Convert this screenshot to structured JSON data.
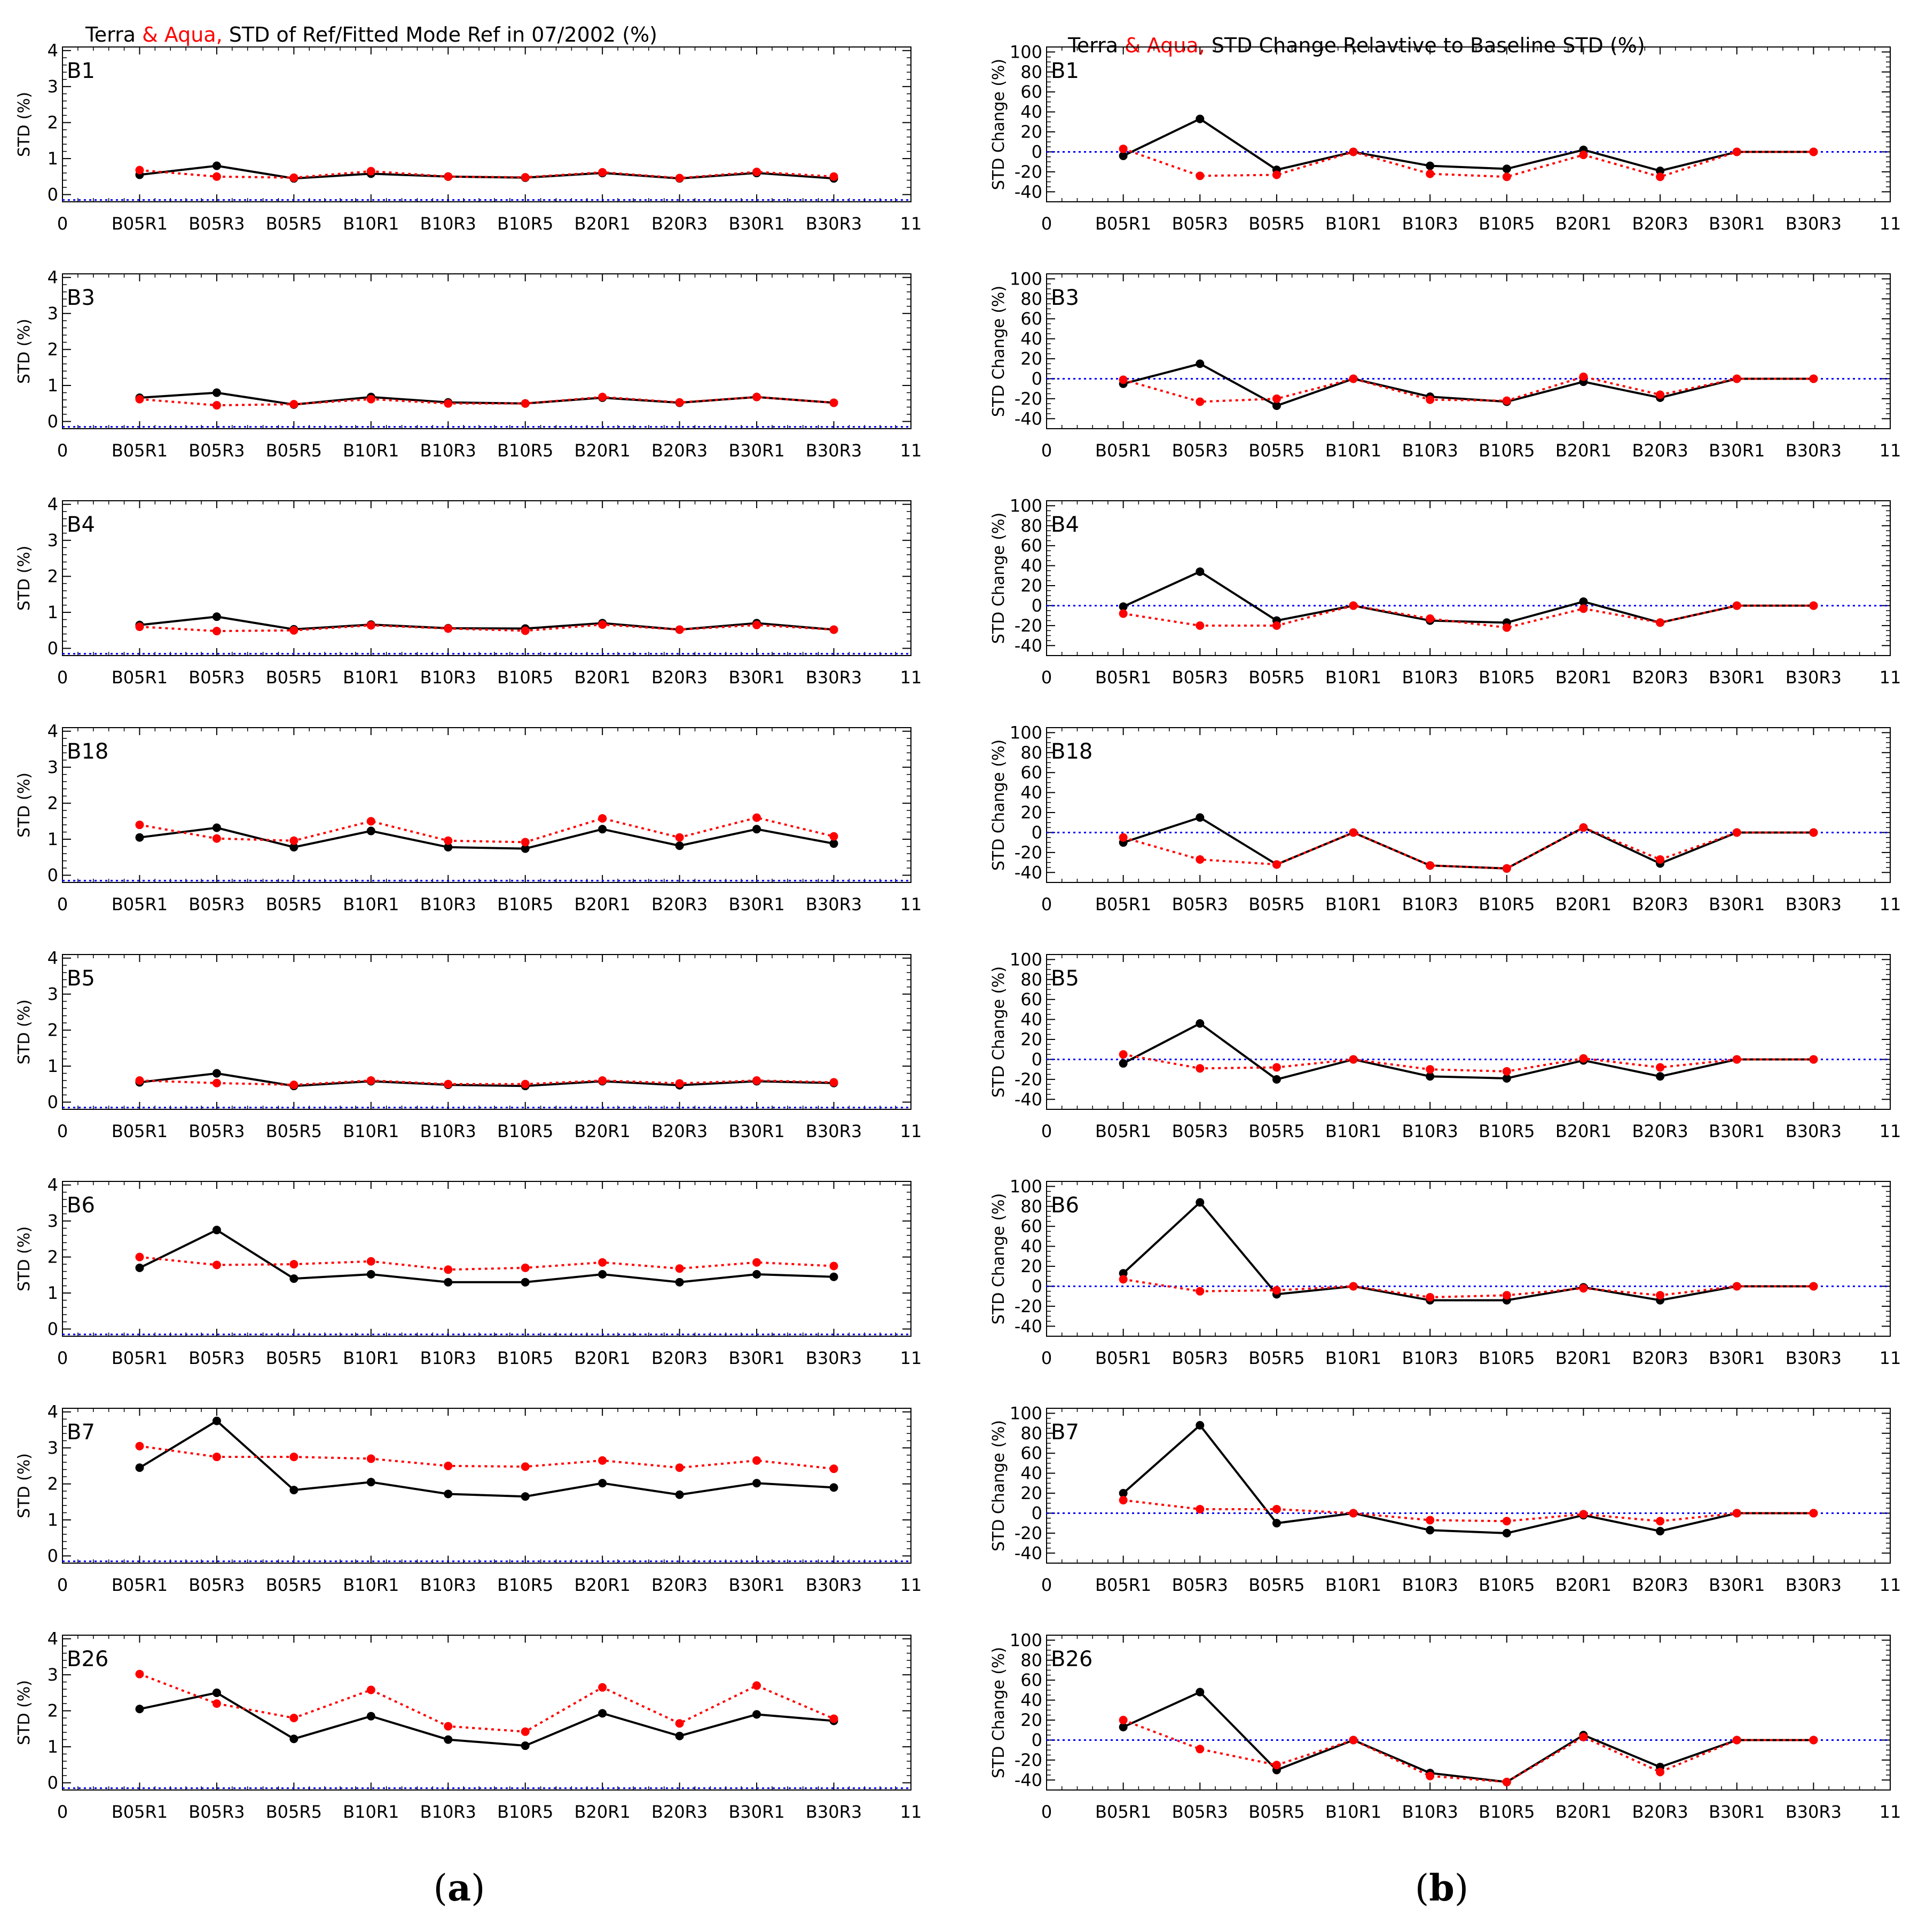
{
  "colors": {
    "terra": "#000000",
    "aqua": "#ff0000",
    "baseline": "#0000ff",
    "axis": "#000000"
  },
  "chart_data": [
    {
      "panel": "a",
      "panel_label": "(a)",
      "type": "line",
      "title": {
        "prefix": "Terra",
        "amp": "&",
        "aqua": "Aqua,",
        "rest": "STD of Ref/Fitted Mode Ref in 07/2002 (%)"
      },
      "ylabel": "STD (%)",
      "xlim": [
        0,
        11
      ],
      "ylim": [
        -0.2,
        4.1
      ],
      "yticks": [
        0,
        1,
        2,
        3,
        4
      ],
      "xtick_edge_labels": [
        "0",
        "11"
      ],
      "categories": [
        "B05R1",
        "B05R3",
        "B05R5",
        "B10R1",
        "B10R3",
        "B10R5",
        "B20R1",
        "B20R3",
        "B30R1",
        "B30R3"
      ],
      "baseline_y": -0.15,
      "subplots": [
        {
          "band": "B1",
          "series": [
            {
              "name": "Terra",
              "values": [
                0.55,
                0.8,
                0.45,
                0.58,
                0.5,
                0.47,
                0.6,
                0.45,
                0.6,
                0.45
              ]
            },
            {
              "name": "Aqua",
              "values": [
                0.68,
                0.5,
                0.47,
                0.65,
                0.5,
                0.48,
                0.62,
                0.46,
                0.63,
                0.5
              ]
            }
          ]
        },
        {
          "band": "B3",
          "series": [
            {
              "name": "Terra",
              "values": [
                0.66,
                0.8,
                0.47,
                0.68,
                0.53,
                0.5,
                0.66,
                0.52,
                0.68,
                0.52
              ]
            },
            {
              "name": "Aqua",
              "values": [
                0.62,
                0.45,
                0.48,
                0.62,
                0.5,
                0.5,
                0.68,
                0.53,
                0.68,
                0.52
              ]
            }
          ]
        },
        {
          "band": "B4",
          "series": [
            {
              "name": "Terra",
              "values": [
                0.65,
                0.88,
                0.53,
                0.66,
                0.56,
                0.55,
                0.7,
                0.52,
                0.7,
                0.52
              ]
            },
            {
              "name": "Aqua",
              "values": [
                0.6,
                0.48,
                0.5,
                0.64,
                0.55,
                0.49,
                0.66,
                0.52,
                0.65,
                0.52
              ]
            }
          ]
        },
        {
          "band": "B18",
          "series": [
            {
              "name": "Terra",
              "values": [
                1.05,
                1.32,
                0.78,
                1.23,
                0.78,
                0.74,
                1.28,
                0.82,
                1.28,
                0.88
              ]
            },
            {
              "name": "Aqua",
              "values": [
                1.4,
                1.02,
                0.96,
                1.5,
                0.96,
                0.92,
                1.58,
                1.05,
                1.6,
                1.08
              ]
            }
          ]
        },
        {
          "band": "B5",
          "series": [
            {
              "name": "Terra",
              "values": [
                0.55,
                0.8,
                0.45,
                0.58,
                0.48,
                0.45,
                0.58,
                0.47,
                0.58,
                0.53
              ]
            },
            {
              "name": "Aqua",
              "values": [
                0.6,
                0.53,
                0.48,
                0.6,
                0.5,
                0.5,
                0.6,
                0.52,
                0.6,
                0.55
              ]
            }
          ]
        },
        {
          "band": "B6",
          "series": [
            {
              "name": "Terra",
              "values": [
                1.7,
                2.75,
                1.4,
                1.52,
                1.3,
                1.3,
                1.52,
                1.3,
                1.52,
                1.45
              ]
            },
            {
              "name": "Aqua",
              "values": [
                2.0,
                1.78,
                1.8,
                1.88,
                1.65,
                1.7,
                1.85,
                1.68,
                1.85,
                1.75
              ]
            }
          ]
        },
        {
          "band": "B7",
          "series": [
            {
              "name": "Terra",
              "values": [
                2.45,
                3.75,
                1.83,
                2.05,
                1.72,
                1.65,
                2.02,
                1.7,
                2.02,
                1.9
              ]
            },
            {
              "name": "Aqua",
              "values": [
                3.05,
                2.75,
                2.75,
                2.7,
                2.5,
                2.48,
                2.65,
                2.45,
                2.65,
                2.42
              ]
            }
          ]
        },
        {
          "band": "B26",
          "series": [
            {
              "name": "Terra",
              "values": [
                2.05,
                2.5,
                1.22,
                1.85,
                1.2,
                1.03,
                1.93,
                1.3,
                1.9,
                1.72
              ]
            },
            {
              "name": "Aqua",
              "values": [
                3.02,
                2.2,
                1.8,
                2.58,
                1.57,
                1.42,
                2.65,
                1.65,
                2.7,
                1.78
              ]
            }
          ]
        }
      ]
    },
    {
      "panel": "b",
      "panel_label": "(b)",
      "type": "line",
      "title": {
        "prefix": "Terra",
        "amp": "&",
        "aqua": "Aqua,",
        "rest": "STD Change Relavtive to Baseline STD (%)"
      },
      "ylabel": "STD Change (%)",
      "xlim": [
        0,
        11
      ],
      "ylim": [
        -50,
        105
      ],
      "yticks": [
        -40,
        -20,
        0,
        20,
        40,
        60,
        80,
        100
      ],
      "xtick_edge_labels": [
        "0",
        "11"
      ],
      "categories": [
        "B05R1",
        "B05R3",
        "B05R5",
        "B10R1",
        "B10R3",
        "B10R5",
        "B20R1",
        "B20R3",
        "B30R1",
        "B30R3"
      ],
      "baseline_y": 0,
      "subplots": [
        {
          "band": "B1",
          "series": [
            {
              "name": "Terra",
              "values": [
                -4,
                33,
                -18,
                0,
                -14,
                -17,
                2,
                -19,
                0,
                0
              ]
            },
            {
              "name": "Aqua",
              "values": [
                3,
                -24,
                -23,
                0,
                -22,
                -25,
                -3,
                -25,
                0,
                0
              ]
            }
          ]
        },
        {
          "band": "B3",
          "series": [
            {
              "name": "Terra",
              "values": [
                -5,
                15,
                -27,
                0,
                -18,
                -23,
                -3,
                -19,
                0,
                0
              ]
            },
            {
              "name": "Aqua",
              "values": [
                -1,
                -23,
                -20,
                0,
                -21,
                -22,
                2,
                -16,
                0,
                0
              ]
            }
          ]
        },
        {
          "band": "B4",
          "series": [
            {
              "name": "Terra",
              "values": [
                -1,
                34,
                -15,
                0,
                -15,
                -17,
                4,
                -17,
                0,
                0
              ]
            },
            {
              "name": "Aqua",
              "values": [
                -8,
                -20,
                -20,
                0,
                -13,
                -22,
                -3,
                -17,
                0,
                0
              ]
            }
          ]
        },
        {
          "band": "B18",
          "series": [
            {
              "name": "Terra",
              "values": [
                -10,
                15,
                -32,
                0,
                -33,
                -36,
                5,
                -31,
                0,
                0
              ]
            },
            {
              "name": "Aqua",
              "values": [
                -5,
                -27,
                -32,
                0,
                -33,
                -36,
                5,
                -27,
                0,
                0
              ]
            }
          ]
        },
        {
          "band": "B5",
          "series": [
            {
              "name": "Terra",
              "values": [
                -4,
                36,
                -20,
                0,
                -17,
                -19,
                -1,
                -17,
                0,
                0
              ]
            },
            {
              "name": "Aqua",
              "values": [
                5,
                -9,
                -8,
                0,
                -10,
                -12,
                1,
                -8,
                0,
                0
              ]
            }
          ]
        },
        {
          "band": "B6",
          "series": [
            {
              "name": "Terra",
              "values": [
                13,
                84,
                -8,
                0,
                -14,
                -14,
                -1,
                -14,
                0,
                0
              ]
            },
            {
              "name": "Aqua",
              "values": [
                7,
                -5,
                -4,
                0,
                -11,
                -9,
                -2,
                -9,
                0,
                0
              ]
            }
          ]
        },
        {
          "band": "B7",
          "series": [
            {
              "name": "Terra",
              "values": [
                20,
                88,
                -10,
                0,
                -17,
                -20,
                -2,
                -18,
                0,
                0
              ]
            },
            {
              "name": "Aqua",
              "values": [
                13,
                4,
                4,
                0,
                -7,
                -8,
                -1,
                -8,
                0,
                0
              ]
            }
          ]
        },
        {
          "band": "B26",
          "series": [
            {
              "name": "Terra",
              "values": [
                13,
                48,
                -30,
                0,
                -33,
                -42,
                5,
                -27,
                0,
                0
              ]
            },
            {
              "name": "Aqua",
              "values": [
                20,
                -9,
                -25,
                0,
                -36,
                -42,
                3,
                -32,
                0,
                0
              ]
            }
          ]
        }
      ]
    }
  ]
}
